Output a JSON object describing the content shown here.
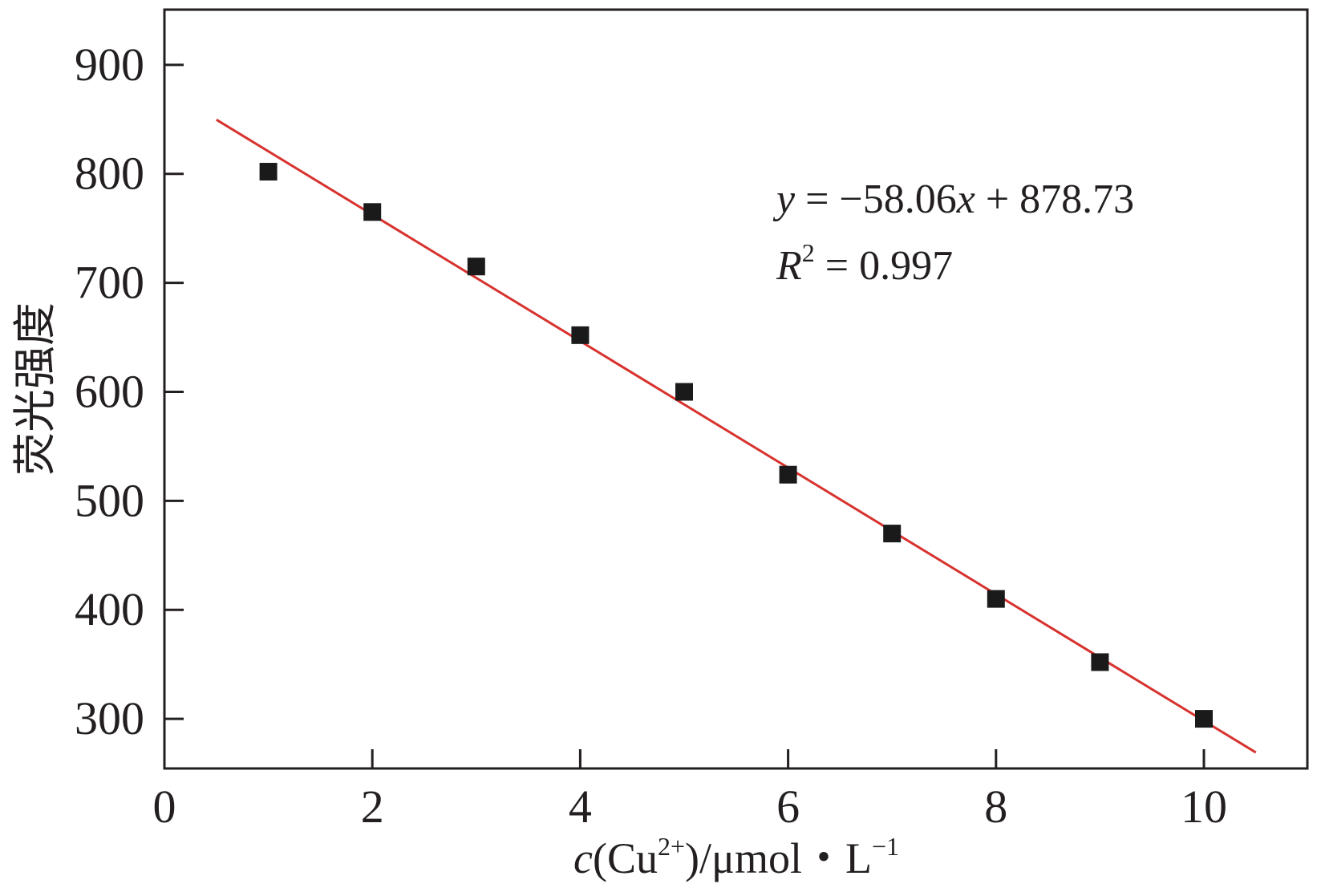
{
  "chart_data": {
    "type": "scatter",
    "title": "",
    "xlabel": {
      "var": "c",
      "open": "(Cu",
      "sup": "2+",
      "mid": ")/μmol・L",
      "sup2": "−1"
    },
    "ylabel": "荧光强度",
    "xlim": [
      0,
      11
    ],
    "ylim": [
      230,
      930
    ],
    "x_ticks": [
      0,
      2,
      4,
      6,
      8,
      10
    ],
    "y_ticks": [
      300,
      400,
      500,
      600,
      700,
      800,
      900
    ],
    "grid": false,
    "legend": "none",
    "points_series": {
      "marker": "square",
      "color": "#1a1a1a",
      "x": [
        1,
        2,
        3,
        4,
        5,
        6,
        7,
        8,
        9,
        10
      ],
      "y": [
        802,
        765,
        715,
        652,
        600,
        524,
        470,
        410,
        352,
        300
      ]
    },
    "fit_line": {
      "color": "#d7322e",
      "slope": -58.06,
      "intercept": 878.73,
      "x_range": [
        0.5,
        10.5
      ]
    },
    "annotations": {
      "equation": {
        "y_var": "y",
        "rest": " = −58.06",
        "x_var": "x",
        "tail": " + 878.73"
      },
      "r2": {
        "var": "R",
        "sup": "2",
        "rest": " = 0.997"
      }
    }
  }
}
